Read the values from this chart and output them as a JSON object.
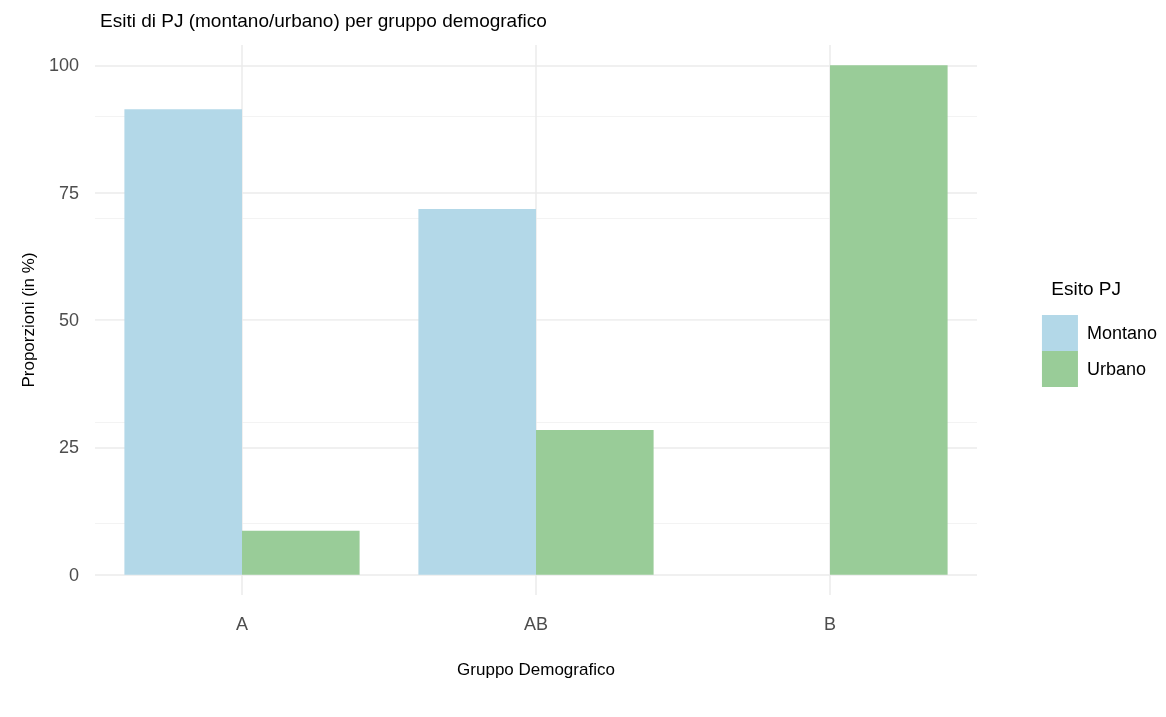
{
  "chart_data": {
    "type": "bar",
    "title": "Esiti di PJ (montano/urbano) per gruppo demografico",
    "xlabel": "Gruppo Demografico",
    "ylabel": "Proporzioni (in %)",
    "legend_title": "Esito PJ",
    "categories": [
      "A",
      "AB",
      "B"
    ],
    "series": [
      {
        "name": "Montano",
        "color": "#b3d8e8",
        "values": [
          91.4,
          71.8,
          0
        ]
      },
      {
        "name": "Urbano",
        "color": "#99cc98",
        "values": [
          8.6,
          28.4,
          100
        ]
      }
    ],
    "ylim": [
      -4,
      104
    ],
    "yticks": [
      0,
      25,
      50,
      75,
      100
    ],
    "grid": true,
    "legend": "right"
  }
}
